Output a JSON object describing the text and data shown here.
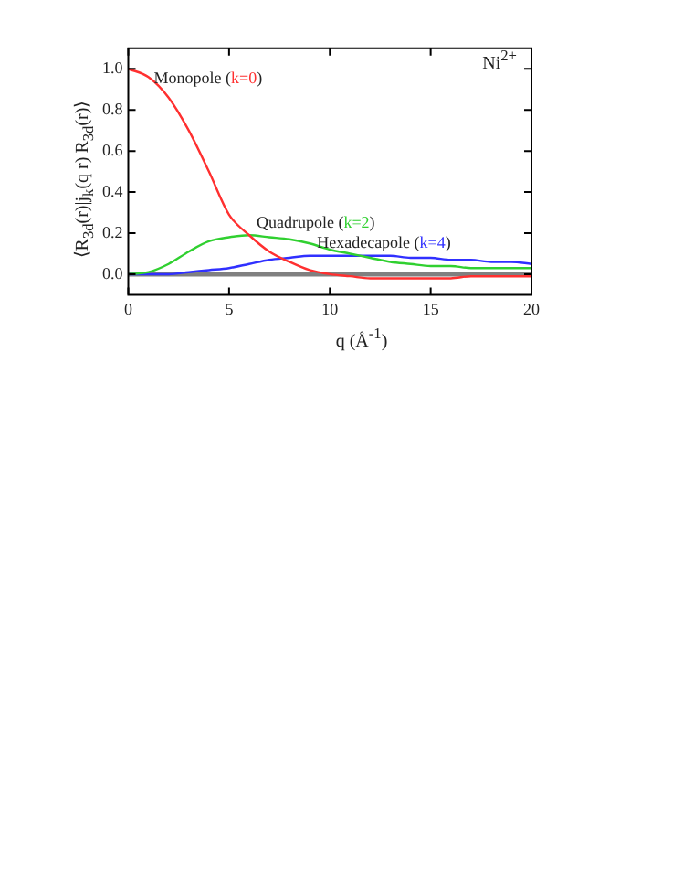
{
  "chart_data": {
    "type": "line",
    "xlabel": "q (Å$^{-1}$)",
    "ylabel": "⟨R$_{3d}$(r)|j$_{k}$(q r)|R$_{3d}$(r)⟩",
    "xlim": [
      0,
      20
    ],
    "xticks": [
      0,
      5,
      10,
      15,
      20
    ],
    "ylim": [
      -0.1,
      1.1
    ],
    "yticks": [
      {
        "value": 0,
        "label": "0.0"
      },
      0.2,
      0.4,
      0.6,
      0.8,
      {
        "value": 1,
        "label": "1.0"
      }
    ],
    "grid": false,
    "legend": false,
    "marker": "none",
    "line_style": "solid",
    "x": [
      0,
      1,
      2,
      3,
      4,
      5,
      6,
      7,
      8,
      9,
      10,
      11,
      12,
      13,
      14,
      15,
      16,
      17,
      18,
      19,
      20
    ],
    "series": [
      {
        "name": "Monopole (k=0)",
        "color": "#ff3030",
        "values": [
          1.0,
          0.96,
          0.86,
          0.7,
          0.5,
          0.29,
          0.19,
          0.11,
          0.06,
          0.02,
          0.0,
          -0.01,
          -0.02,
          -0.02,
          -0.02,
          -0.02,
          -0.02,
          -0.01,
          -0.01,
          -0.01,
          -0.01
        ]
      },
      {
        "name": "Quadrupole (k=2)",
        "color": "#30d030",
        "values": [
          0.0,
          0.01,
          0.05,
          0.11,
          0.16,
          0.18,
          0.19,
          0.18,
          0.17,
          0.15,
          0.12,
          0.1,
          0.08,
          0.06,
          0.05,
          0.04,
          0.04,
          0.03,
          0.03,
          0.03,
          0.03
        ]
      },
      {
        "name": "Hexadecapole (k=4)",
        "color": "#3030ff",
        "values": [
          0.0,
          0.0,
          0.0,
          0.01,
          0.02,
          0.03,
          0.05,
          0.07,
          0.08,
          0.09,
          0.09,
          0.09,
          0.09,
          0.09,
          0.08,
          0.08,
          0.07,
          0.07,
          0.06,
          0.06,
          0.05
        ]
      }
    ],
    "ref_lines": [
      {
        "axis": "y",
        "value": 0,
        "color": "#808080"
      }
    ],
    "annotations": [
      "Ni$^{2+}$"
    ]
  }
}
